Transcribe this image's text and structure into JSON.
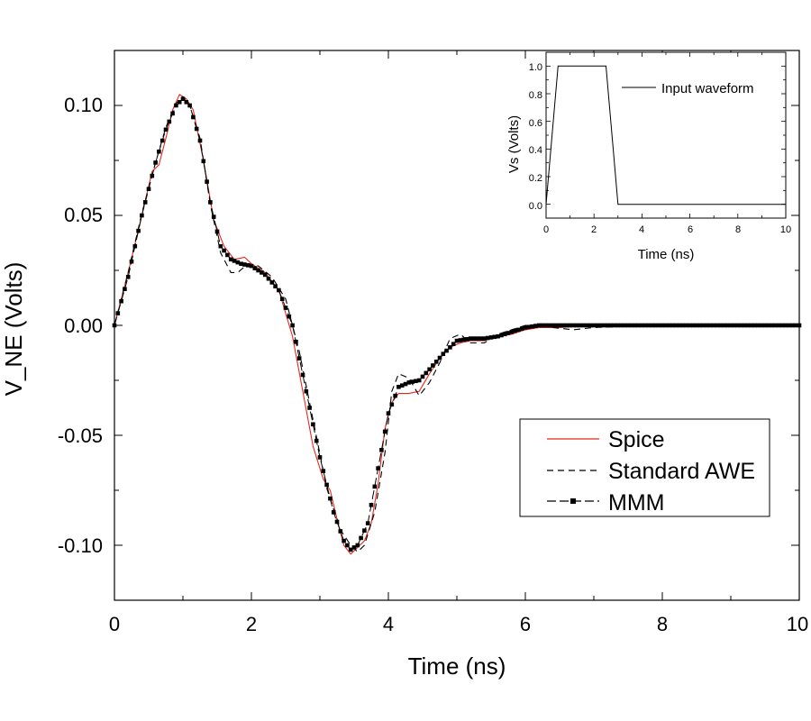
{
  "chart_data": [
    {
      "type": "line",
      "title": "",
      "xlabel": "Time (ns)",
      "ylabel": "V_NE (Volts)",
      "xlim": [
        0,
        10
      ],
      "ylim": [
        -0.125,
        0.125
      ],
      "xticks": [
        "0",
        "2",
        "4",
        "6",
        "8",
        "10"
      ],
      "yticks": [
        "0.10",
        "0.05",
        "0.00",
        "-0.05",
        "-0.10"
      ],
      "grid": false,
      "legend_position": "lower-right",
      "series": [
        {
          "name": "Spice",
          "color": "#e8271e",
          "style": "solid",
          "x": [
            0,
            0.2,
            0.4,
            0.55,
            0.65,
            0.75,
            0.85,
            0.95,
            1.05,
            1.15,
            1.3,
            1.45,
            1.6,
            1.75,
            1.9,
            2.0,
            2.2,
            2.4,
            2.6,
            2.75,
            2.9,
            3.05,
            3.15,
            3.25,
            3.35,
            3.45,
            3.55,
            3.65,
            3.75,
            3.85,
            3.95,
            4.05,
            4.15,
            4.3,
            4.45,
            4.6,
            4.75,
            4.9,
            5.05,
            5.2,
            5.4,
            5.6,
            5.8,
            6.0,
            6.2,
            6.5,
            7.0,
            8.0,
            9.0,
            10.0
          ],
          "y": [
            0.0,
            0.024,
            0.05,
            0.07,
            0.073,
            0.085,
            0.098,
            0.105,
            0.103,
            0.098,
            0.075,
            0.048,
            0.036,
            0.03,
            0.031,
            0.028,
            0.024,
            0.016,
            -0.005,
            -0.03,
            -0.055,
            -0.07,
            -0.075,
            -0.088,
            -0.1,
            -0.104,
            -0.101,
            -0.098,
            -0.09,
            -0.072,
            -0.047,
            -0.035,
            -0.031,
            -0.031,
            -0.03,
            -0.022,
            -0.015,
            -0.01,
            -0.008,
            -0.007,
            -0.007,
            -0.005,
            -0.004,
            -0.002,
            -0.001,
            -0.001,
            0.0,
            0.0,
            0.0,
            0.0
          ]
        },
        {
          "name": "Standard AWE",
          "color": "#000000",
          "style": "dashed",
          "x": [
            0,
            0.2,
            0.4,
            0.6,
            0.75,
            0.9,
            1.0,
            1.1,
            1.25,
            1.4,
            1.55,
            1.7,
            1.8,
            1.95,
            2.1,
            2.3,
            2.5,
            2.7,
            2.9,
            3.1,
            3.3,
            3.45,
            3.55,
            3.65,
            3.8,
            3.95,
            4.05,
            4.15,
            4.3,
            4.45,
            4.6,
            4.75,
            4.9,
            5.05,
            5.2,
            5.4,
            5.6,
            5.8,
            6.0,
            6.2,
            6.4,
            6.7,
            7.0,
            8.0,
            9.0,
            10.0
          ],
          "y": [
            0.0,
            0.024,
            0.051,
            0.074,
            0.09,
            0.101,
            0.104,
            0.1,
            0.085,
            0.055,
            0.033,
            0.024,
            0.024,
            0.028,
            0.027,
            0.022,
            0.012,
            -0.012,
            -0.043,
            -0.074,
            -0.093,
            -0.1,
            -0.103,
            -0.1,
            -0.085,
            -0.058,
            -0.03,
            -0.022,
            -0.024,
            -0.032,
            -0.026,
            -0.017,
            -0.006,
            -0.004,
            -0.008,
            -0.008,
            -0.004,
            -0.002,
            0.0,
            0.0,
            -0.001,
            -0.002,
            -0.001,
            0.0,
            0.0,
            0.0
          ]
        },
        {
          "name": "MMM",
          "color": "#000000",
          "style": "dash-square-markers",
          "x": [
            0,
            0.2,
            0.4,
            0.6,
            0.75,
            0.9,
            1.0,
            1.1,
            1.25,
            1.4,
            1.55,
            1.7,
            1.85,
            2.0,
            2.2,
            2.4,
            2.6,
            2.8,
            3.0,
            3.2,
            3.35,
            3.45,
            3.55,
            3.7,
            3.85,
            4.0,
            4.15,
            4.3,
            4.45,
            4.6,
            4.8,
            5.0,
            5.2,
            5.4,
            5.6,
            5.8,
            6.0,
            6.2,
            6.5,
            7.0,
            8.0,
            9.0,
            10.0
          ],
          "y": [
            0.0,
            0.022,
            0.05,
            0.074,
            0.089,
            0.1,
            0.103,
            0.1,
            0.084,
            0.056,
            0.036,
            0.03,
            0.028,
            0.027,
            0.023,
            0.016,
            0.0,
            -0.03,
            -0.06,
            -0.085,
            -0.098,
            -0.102,
            -0.1,
            -0.09,
            -0.065,
            -0.04,
            -0.028,
            -0.026,
            -0.025,
            -0.02,
            -0.013,
            -0.007,
            -0.006,
            -0.006,
            -0.005,
            -0.003,
            -0.001,
            0.0,
            0.0,
            0.0,
            0.0,
            0.0,
            0.0
          ]
        }
      ]
    },
    {
      "type": "line",
      "title": "",
      "xlabel": "Time (ns)",
      "ylabel": "Vs (Volts)",
      "xlim": [
        0,
        10
      ],
      "ylim": [
        -0.1,
        1.1
      ],
      "xticks": [
        "0",
        "2",
        "4",
        "6",
        "8",
        "10"
      ],
      "yticks": [
        "0.0",
        "0.2",
        "0.4",
        "0.6",
        "0.8",
        "1.0"
      ],
      "grid": false,
      "legend_position": "top-right",
      "series": [
        {
          "name": "Input waveform",
          "color": "#000000",
          "style": "solid",
          "x": [
            0,
            0.5,
            2.5,
            3.0,
            10.0
          ],
          "y": [
            0.0,
            1.0,
            1.0,
            0.0,
            0.0
          ]
        }
      ]
    }
  ]
}
